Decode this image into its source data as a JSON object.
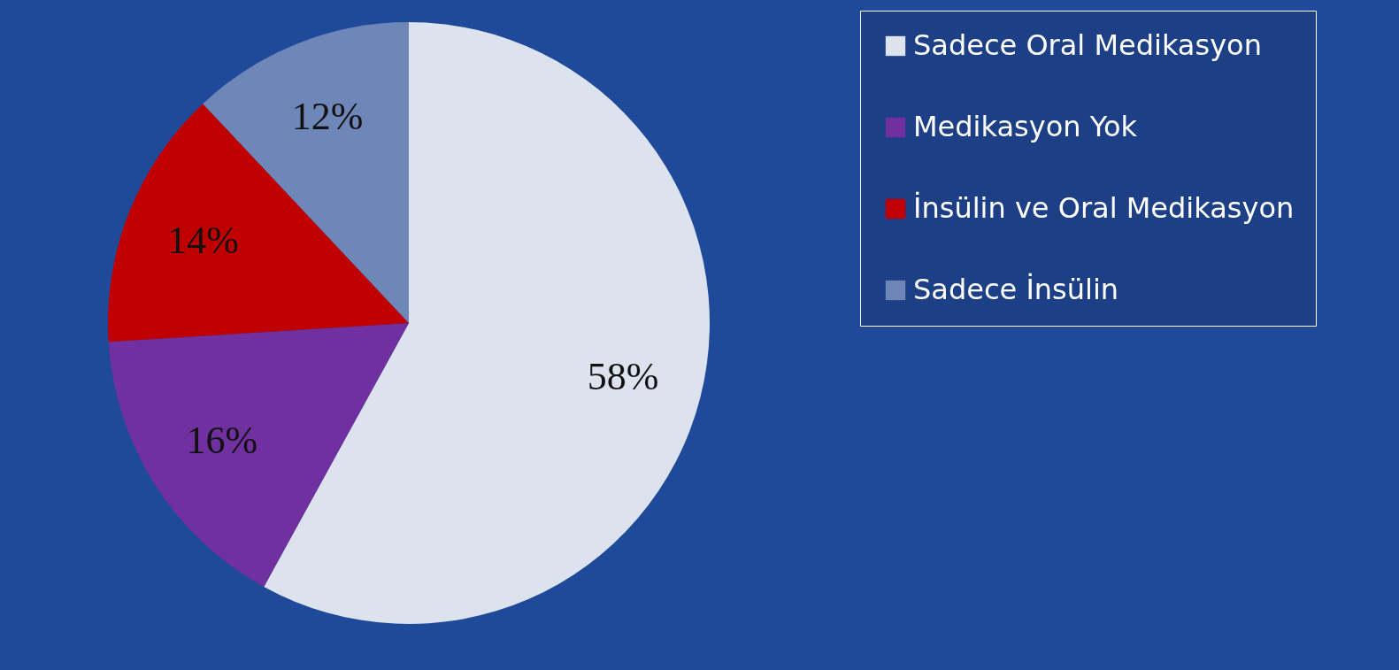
{
  "chart_data": {
    "type": "pie",
    "categories": [
      "Sadece Oral Medikasyon",
      "Medikasyon Yok",
      "İnsülin ve Oral Medikasyon",
      "Sadece İnsülin"
    ],
    "values": [
      58,
      16,
      14,
      12
    ],
    "colors": [
      "#dde3ee",
      "#7030a0",
      "#c00000",
      "#6f86b8"
    ],
    "value_labels": [
      "58%",
      "16%",
      "14%",
      "12%"
    ],
    "legend": "right"
  }
}
